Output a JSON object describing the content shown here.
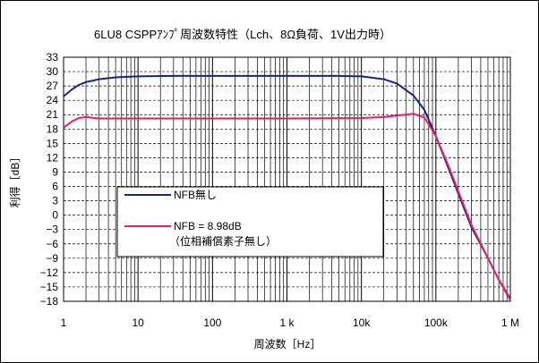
{
  "chart_data": {
    "type": "line",
    "title": "6LU8 CSPPｱﾝﾌﾟ周波数特性（Lch、8Ω負荷、1V出力時）",
    "xlabel": "周波数［Hz］",
    "ylabel": "利得［dB］",
    "x_scale": "log",
    "xlim": [
      1,
      1000000
    ],
    "ylim": [
      -18,
      33
    ],
    "x_ticks": [
      {
        "value": 1,
        "label": "1"
      },
      {
        "value": 10,
        "label": "10"
      },
      {
        "value": 100,
        "label": "100"
      },
      {
        "value": 1000,
        "label": "1 k"
      },
      {
        "value": 10000,
        "label": "10k"
      },
      {
        "value": 100000,
        "label": "100k"
      },
      {
        "value": 1000000,
        "label": "1 M"
      }
    ],
    "y_ticks": [
      33,
      30,
      27,
      24,
      21,
      18,
      15,
      12,
      9,
      6,
      3,
      0,
      -3,
      -6,
      -9,
      -12,
      -15,
      -18
    ],
    "grid": true,
    "legend": [
      {
        "line1": "NFB無し",
        "line2": ""
      },
      {
        "line1": "NFB = 8.98dB",
        "line2": "（位相補償素子無し）"
      }
    ],
    "series": [
      {
        "name": "NFB無し",
        "color": "#1a237e",
        "x": [
          1,
          1.3,
          1.6,
          2,
          3,
          5,
          10,
          30,
          100,
          1000,
          5000,
          10000,
          20000,
          30000,
          50000,
          70000,
          100000,
          150000,
          200000,
          300000,
          500000,
          700000,
          1000000
        ],
        "y": [
          24.8,
          26.3,
          27.2,
          27.8,
          28.4,
          28.8,
          29.0,
          29.1,
          29.1,
          29.1,
          29.1,
          29.0,
          28.4,
          27.5,
          25.0,
          22.0,
          16.5,
          9.5,
          4.5,
          -2.5,
          -9.0,
          -13.5,
          -17.5
        ]
      },
      {
        "name": "NFB = 8.98dB",
        "color": "#e91e63",
        "x": [
          1,
          1.3,
          1.6,
          2,
          3,
          10,
          100,
          1000,
          10000,
          20000,
          30000,
          50000,
          70000,
          100000,
          150000,
          200000,
          300000,
          500000,
          700000,
          1000000
        ],
        "y": [
          18.3,
          19.6,
          20.3,
          20.5,
          20.2,
          20.2,
          20.2,
          20.2,
          20.3,
          20.5,
          20.8,
          21.2,
          20.4,
          16.5,
          10.0,
          5.0,
          -2.0,
          -9.0,
          -13.5,
          -17.8
        ]
      }
    ]
  }
}
